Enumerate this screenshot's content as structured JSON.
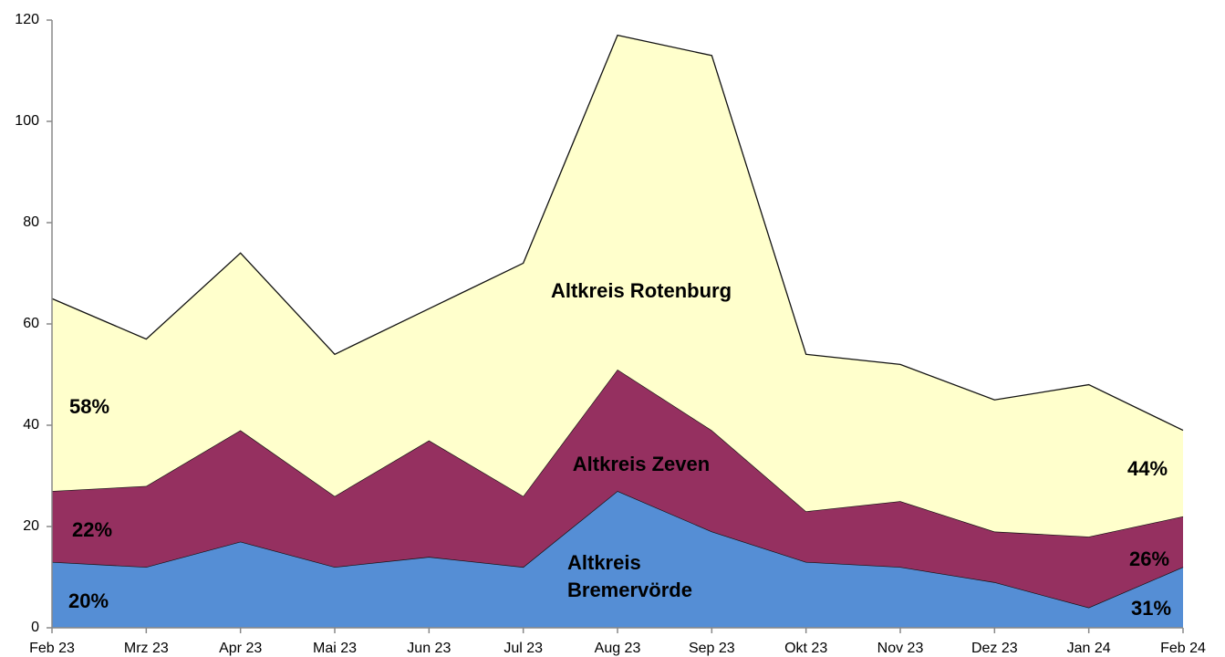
{
  "chart_data": {
    "type": "stacked_area",
    "categories": [
      "Feb 23",
      "Mrz 23",
      "Apr 23",
      "Mai 23",
      "Jun 23",
      "Jul 23",
      "Aug 23",
      "Sep 23",
      "Okt 23",
      "Nov 23",
      "Dez 23",
      "Jan 24",
      "Feb 24"
    ],
    "series": [
      {
        "name": "Altkreis Bremervörde",
        "color": "#558ed5",
        "values": [
          13,
          12,
          17,
          12,
          14,
          12,
          27,
          19,
          13,
          12,
          9,
          4,
          12
        ]
      },
      {
        "name": "Altkreis Zeven",
        "color": "#953060",
        "values": [
          14,
          16,
          22,
          14,
          23,
          14,
          24,
          20,
          10,
          13,
          10,
          14,
          10
        ]
      },
      {
        "name": "Altkreis Rotenburg",
        "color": "#ffffcc",
        "values": [
          38,
          29,
          35,
          28,
          26,
          46,
          66,
          74,
          31,
          27,
          26,
          30,
          17
        ]
      }
    ],
    "annotations": [
      "58%",
      "22%",
      "20%",
      "44%",
      "26%",
      "31%"
    ],
    "ylim": [
      0,
      120
    ],
    "yticks": [
      0,
      20,
      40,
      60,
      80,
      100,
      120
    ],
    "grid": false
  }
}
